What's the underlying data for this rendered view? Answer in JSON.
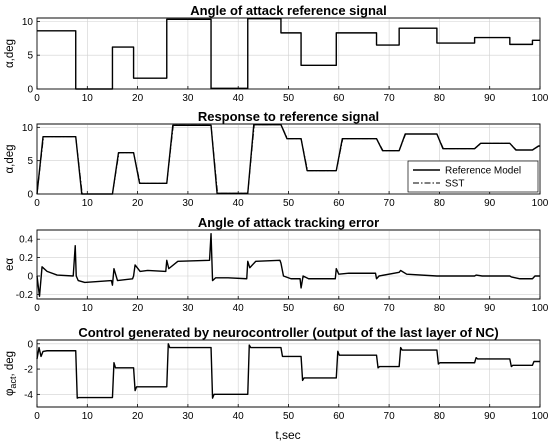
{
  "figure": {
    "xlabel": "t,sec"
  },
  "chart_data": [
    {
      "type": "line",
      "title": "Angle of attack reference signal",
      "ylabel": "α,deg",
      "xlim": [
        0,
        100
      ],
      "ylim": [
        0,
        10.5
      ],
      "xticks": [
        0,
        10,
        20,
        30,
        40,
        50,
        60,
        70,
        80,
        90,
        100
      ],
      "yticks": [
        0,
        5,
        10
      ],
      "grid": true,
      "series": [
        {
          "style": "solid",
          "x": [
            0,
            7.7,
            7.7,
            15,
            15,
            19.2,
            19.2,
            25.8,
            25.8,
            34.6,
            34.6,
            41.9,
            41.9,
            48.5,
            48.5,
            52.5,
            52.5,
            59.5,
            59.5,
            67.5,
            67.5,
            72,
            72,
            79.5,
            79.5,
            87,
            87,
            94,
            94,
            98.5,
            98.5,
            100
          ],
          "y": [
            8.6,
            8.6,
            0,
            0,
            6.2,
            6.2,
            1.6,
            1.6,
            10.3,
            10.3,
            0.1,
            0.1,
            10.4,
            10.4,
            8.3,
            8.3,
            3.5,
            3.5,
            8.3,
            8.3,
            6.5,
            6.5,
            9.0,
            9.0,
            6.8,
            6.8,
            7.6,
            7.6,
            6.6,
            6.6,
            7.2,
            7.2
          ]
        }
      ]
    },
    {
      "type": "line",
      "title": "Response to reference signal",
      "ylabel": "α,deg",
      "xlim": [
        0,
        100
      ],
      "ylim": [
        0,
        10.5
      ],
      "xticks": [
        0,
        10,
        20,
        30,
        40,
        50,
        60,
        70,
        80,
        90,
        100
      ],
      "yticks": [
        0,
        5,
        10
      ],
      "grid": true,
      "legend": {
        "position": "bottom-right",
        "entries": [
          "Reference Model",
          "SST"
        ]
      },
      "series": [
        {
          "name": "Reference Model",
          "style": "solid",
          "x": [
            0,
            1.2,
            7.7,
            8.9,
            15,
            16.2,
            19.2,
            20.4,
            25.8,
            27.0,
            34.6,
            35.8,
            41.9,
            43.1,
            48.5,
            49.7,
            52.5,
            53.7,
            59.5,
            60.7,
            67.5,
            68.7,
            72,
            73.2,
            79.5,
            80.7,
            87,
            88.2,
            94,
            95.2,
            98.5,
            99.7,
            100
          ],
          "y": [
            0,
            8.6,
            8.6,
            0,
            0,
            6.2,
            6.2,
            1.6,
            1.6,
            10.3,
            10.3,
            0.1,
            0.1,
            10.4,
            10.4,
            8.3,
            8.3,
            3.5,
            3.5,
            8.3,
            8.3,
            6.5,
            6.5,
            9.0,
            9.0,
            6.8,
            6.8,
            7.6,
            7.6,
            6.6,
            6.6,
            7.2,
            7.2
          ]
        },
        {
          "name": "SST",
          "style": "dashdot",
          "x": [
            0,
            1.3,
            7.7,
            9.0,
            15,
            16.3,
            19.2,
            20.5,
            25.8,
            27.1,
            34.6,
            35.9,
            41.9,
            43.2,
            48.5,
            49.8,
            52.5,
            53.8,
            59.5,
            60.8,
            67.5,
            68.8,
            72,
            73.3,
            79.5,
            80.8,
            87,
            88.3,
            94,
            95.3,
            98.5,
            99.8,
            100
          ],
          "y": [
            0,
            8.6,
            8.6,
            0,
            0,
            6.2,
            6.2,
            1.6,
            1.6,
            10.3,
            10.3,
            0.1,
            0.1,
            10.4,
            10.4,
            8.3,
            8.3,
            3.5,
            3.5,
            8.3,
            8.3,
            6.5,
            6.5,
            9.0,
            9.0,
            6.8,
            6.8,
            7.6,
            7.6,
            6.6,
            6.6,
            7.2,
            7.2
          ]
        }
      ]
    },
    {
      "type": "line",
      "title": "Angle of attack tracking error",
      "ylabel": "eα",
      "xlim": [
        0,
        100
      ],
      "ylim": [
        -0.25,
        0.5
      ],
      "xticks": [
        0,
        10,
        20,
        30,
        40,
        50,
        60,
        70,
        80,
        90,
        100
      ],
      "yticks": [
        -0.2,
        0,
        0.2,
        0.4
      ],
      "grid": true,
      "series": [
        {
          "style": "solid",
          "x": [
            0,
            0.5,
            1.0,
            2.0,
            4,
            7.2,
            7.6,
            7.8,
            8.2,
            9.5,
            12,
            14.8,
            15.0,
            15.3,
            16,
            19.0,
            19.2,
            19.5,
            20.5,
            22,
            25.6,
            25.8,
            26.2,
            28,
            34.3,
            34.6,
            34.9,
            35.5,
            38,
            41.7,
            41.9,
            42.3,
            43.5,
            48.3,
            48.5,
            49.0,
            50.5,
            52.3,
            52.5,
            52.9,
            54,
            59.3,
            59.5,
            60.0,
            62,
            67.3,
            67.5,
            68,
            72,
            72.3,
            73.5,
            79.5,
            79.8,
            81,
            87,
            87.3,
            88.5,
            94,
            94.3,
            96,
            98.5,
            99.0,
            100
          ],
          "y": [
            0.0,
            -0.22,
            0.1,
            0.05,
            0.01,
            0.0,
            0.33,
            0.0,
            -0.05,
            -0.07,
            -0.06,
            -0.05,
            -0.1,
            0.08,
            -0.05,
            -0.03,
            0.0,
            0.12,
            0.05,
            0.06,
            0.05,
            0.17,
            0.08,
            0.16,
            0.17,
            0.46,
            -0.05,
            -0.02,
            -0.02,
            -0.03,
            0.16,
            0.09,
            0.16,
            0.17,
            0.14,
            0.0,
            -0.03,
            -0.03,
            -0.13,
            0.0,
            -0.03,
            -0.03,
            0.08,
            0.02,
            0.03,
            0.03,
            -0.03,
            0.0,
            0.04,
            0.06,
            0.02,
            0.0,
            0.0,
            0.0,
            0.0,
            0.01,
            0.0,
            0.0,
            -0.01,
            -0.03,
            -0.03,
            0.0,
            0.0
          ]
        }
      ]
    },
    {
      "type": "line",
      "title": "Control generated by neurocontroller (output of the last layer of NC)",
      "ylabel": "φact, deg",
      "xlim": [
        0,
        100
      ],
      "ylim": [
        -5,
        0.3
      ],
      "xticks": [
        0,
        10,
        20,
        30,
        40,
        50,
        60,
        70,
        80,
        90,
        100
      ],
      "yticks": [
        -4,
        -2,
        0
      ],
      "grid": true,
      "series": [
        {
          "style": "solid",
          "x": [
            0,
            0.4,
            0.8,
            1.2,
            2,
            7.7,
            8.0,
            8.3,
            15,
            15.3,
            15.6,
            19.2,
            19.5,
            19.8,
            25.8,
            26.1,
            26.4,
            34.6,
            34.9,
            35.2,
            41.9,
            42.2,
            42.5,
            48.5,
            48.8,
            49.1,
            52.5,
            52.8,
            53.1,
            59.5,
            59.8,
            60.1,
            67.5,
            67.8,
            68.1,
            72,
            72.3,
            72.6,
            79.5,
            79.8,
            80.1,
            87,
            87.3,
            87.6,
            94,
            94.3,
            94.6,
            98.5,
            98.8,
            99.1,
            100
          ],
          "y": [
            -1.2,
            -0.3,
            -1.0,
            -0.6,
            -0.55,
            -0.55,
            -4.3,
            -4.25,
            -4.25,
            -1.5,
            -1.9,
            -1.9,
            -3.7,
            -3.4,
            -3.4,
            0.0,
            -0.3,
            -0.3,
            -4.3,
            -4.0,
            -4.0,
            -0.1,
            -0.3,
            -0.3,
            -1.0,
            -1.0,
            -1.0,
            -2.9,
            -2.7,
            -2.7,
            -0.6,
            -0.9,
            -0.9,
            -1.9,
            -1.8,
            -1.8,
            -0.3,
            -0.5,
            -0.5,
            -1.6,
            -1.5,
            -1.5,
            -1.1,
            -1.2,
            -1.2,
            -1.8,
            -1.7,
            -1.7,
            -1.4,
            -1.4,
            -1.4
          ]
        }
      ]
    }
  ]
}
